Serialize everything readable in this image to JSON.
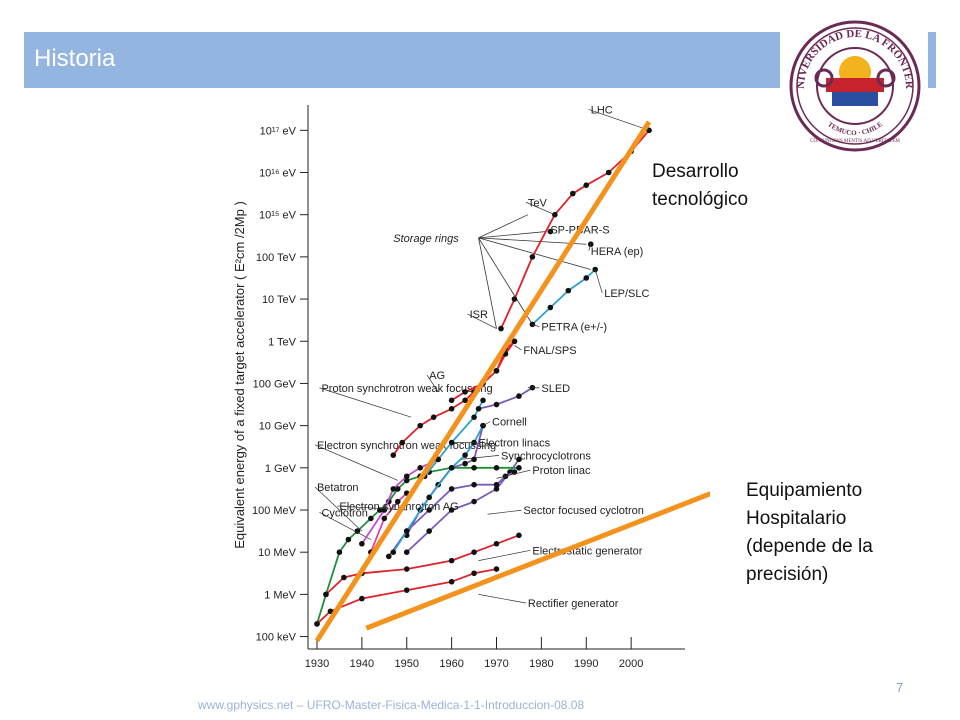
{
  "slide": {
    "title": "Historia",
    "page_number": "7",
    "footer": "www.gphysics.net – UFRO-Master-Fisica-Medica-1-1-Introduccion-08.08",
    "annotations": {
      "upper_line1": "Desarrollo",
      "upper_line2": "tecnológico",
      "lower_line1": "Equipamiento",
      "lower_line2": "Hospitalario",
      "lower_line3": "(depende de la",
      "lower_line4": "precisión)"
    },
    "logo": {
      "icon": "university-seal-icon",
      "text_top": "UNIVERSIDAD DE LA FRONTERA",
      "text_bottom": "TEMUCO · CHILE",
      "motto": "CONIUNGENS MENTIS AD VERITATEM"
    }
  },
  "chart_data": {
    "type": "line",
    "ylabel": "Equivalent energy of a fixed target accelerator ( E²cm /2Mp )",
    "x_ticks": [
      1930,
      1940,
      1950,
      1960,
      1970,
      1980,
      1990,
      2000
    ],
    "y_ticks": [
      {
        "log": 5,
        "label": "100 keV"
      },
      {
        "log": 6,
        "label": "1 MeV"
      },
      {
        "log": 7,
        "label": "10 MeV"
      },
      {
        "log": 8,
        "label": "100 MeV"
      },
      {
        "log": 9,
        "label": "1 GeV"
      },
      {
        "log": 10,
        "label": "10 GeV"
      },
      {
        "log": 11,
        "label": "100 GeV"
      },
      {
        "log": 12,
        "label": "1 TeV"
      },
      {
        "log": 13,
        "label": "10 TeV"
      },
      {
        "log": 14,
        "label": "100 TeV"
      },
      {
        "log": 15,
        "label": "10¹⁵ eV"
      },
      {
        "log": 16,
        "label": "10¹⁶ eV"
      },
      {
        "log": 17,
        "label": "10¹⁷ eV"
      }
    ],
    "xlim": [
      1928,
      2012
    ],
    "ylim_log": [
      4.8,
      17.6
    ],
    "series": [
      {
        "name": "Rectifier generator",
        "color": "#e0202a",
        "label_at": [
          1977,
          5.7
        ],
        "label_anchor": [
          1966,
          6.0
        ],
        "points": [
          [
            1930,
            5.3
          ],
          [
            1933,
            5.6
          ],
          [
            1940,
            5.9
          ],
          [
            1950,
            6.1
          ],
          [
            1960,
            6.3
          ],
          [
            1965,
            6.5
          ],
          [
            1970,
            6.6
          ]
        ]
      },
      {
        "name": "Electrostatic generator",
        "color": "#e0202a",
        "label_at": [
          1978,
          6.95
        ],
        "label_anchor": [
          1966,
          6.8
        ],
        "points": [
          [
            1932,
            6.0
          ],
          [
            1936,
            6.4
          ],
          [
            1940,
            6.5
          ],
          [
            1950,
            6.6
          ],
          [
            1960,
            6.8
          ],
          [
            1965,
            7.0
          ],
          [
            1970,
            7.2
          ],
          [
            1975,
            7.4
          ]
        ]
      },
      {
        "name": "Sector focused cyclotron",
        "color": "#7a5ab8",
        "label_at": [
          1976,
          7.9
        ],
        "label_anchor": [
          1968,
          7.9
        ],
        "points": [
          [
            1950,
            7.0
          ],
          [
            1955,
            7.5
          ],
          [
            1960,
            8.0
          ],
          [
            1965,
            8.2
          ],
          [
            1970,
            8.5
          ],
          [
            1973,
            8.9
          ],
          [
            1975,
            9.2
          ]
        ]
      },
      {
        "name": "Proton linac",
        "color": "#7a5ab8",
        "label_at": [
          1978,
          8.85
        ],
        "label_anchor": [
          1970,
          8.75
        ],
        "points": [
          [
            1946,
            6.9
          ],
          [
            1950,
            7.5
          ],
          [
            1955,
            8.0
          ],
          [
            1960,
            8.5
          ],
          [
            1965,
            8.6
          ],
          [
            1970,
            8.6
          ],
          [
            1972,
            8.8
          ],
          [
            1974,
            8.9
          ]
        ]
      },
      {
        "name": "Cyclotron",
        "color": "#1f8f3a",
        "label_at": [
          1931,
          7.85
        ],
        "label_anchor": [
          1942,
          7.3
        ],
        "points": [
          [
            1930,
            5.3
          ],
          [
            1932,
            6.0
          ],
          [
            1935,
            7.0
          ],
          [
            1937,
            7.3
          ],
          [
            1939,
            7.5
          ],
          [
            1942,
            7.8
          ],
          [
            1944,
            8.0
          ],
          [
            1946,
            8.2
          ]
        ]
      },
      {
        "name": "Synchrocyclotrons",
        "color": "#1f8f3a",
        "label_at": [
          1971,
          9.2
        ],
        "label_anchor": [
          1962,
          9.2
        ],
        "points": [
          [
            1946,
            8.2
          ],
          [
            1948,
            8.5
          ],
          [
            1950,
            8.7
          ],
          [
            1953,
            8.8
          ],
          [
            1955,
            8.9
          ],
          [
            1960,
            9.0
          ],
          [
            1965,
            9.0
          ],
          [
            1970,
            9.0
          ],
          [
            1975,
            9.0
          ]
        ]
      },
      {
        "name": "Betatron",
        "color": "#e040b0",
        "label_at": [
          1930,
          8.45
        ],
        "label_anchor": [
          1940,
          7.5
        ],
        "points": [
          [
            1940,
            6.5
          ],
          [
            1942,
            7.0
          ],
          [
            1945,
            7.8
          ],
          [
            1948,
            8.2
          ],
          [
            1950,
            8.4
          ]
        ]
      },
      {
        "name": "Electron synchrotron weak focussing",
        "color": "#c04cd0",
        "label_at": [
          1930,
          9.45
        ],
        "label_anchor": [
          1948,
          8.7
        ],
        "points": [
          [
            1940,
            7.2
          ],
          [
            1945,
            8.0
          ],
          [
            1947,
            8.5
          ],
          [
            1950,
            8.8
          ],
          [
            1953,
            9.0
          ],
          [
            1957,
            9.2
          ]
        ]
      },
      {
        "name": "Electron synchrotron AG",
        "color": "#7a5ab8",
        "label_at": [
          1935,
          8.0
        ],
        "label_anchor": [
          1950,
          8.0
        ],
        "points": [
          [
            1950,
            7.4
          ],
          [
            1953,
            8.0
          ],
          [
            1957,
            8.6
          ],
          [
            1960,
            9.0
          ],
          [
            1963,
            9.1
          ],
          [
            1965,
            9.2
          ],
          [
            1967,
            10.0
          ]
        ]
      },
      {
        "name": "Electron linacs",
        "color": "#2aa0d0",
        "label_at": [
          1966,
          9.5
        ],
        "label_anchor": [
          1960,
          9.6
        ],
        "points": [
          [
            1947,
            7.0
          ],
          [
            1950,
            7.5
          ],
          [
            1955,
            8.3
          ],
          [
            1960,
            9.0
          ],
          [
            1963,
            9.3
          ],
          [
            1965,
            9.6
          ],
          [
            1967,
            10.0
          ]
        ]
      },
      {
        "name": "Cornell",
        "color": "#2aa0d0",
        "label_at": [
          1969,
          10.0
        ],
        "label_anchor": [
          1967,
          10.0
        ],
        "points": [
          [
            1954,
            8.8
          ],
          [
            1957,
            9.2
          ],
          [
            1960,
            9.6
          ],
          [
            1965,
            10.2
          ],
          [
            1967,
            10.6
          ]
        ]
      },
      {
        "name": "SLED",
        "color": "#7a5ab8",
        "label_at": [
          1980,
          10.8
        ],
        "label_anchor": [
          1977,
          10.9
        ],
        "points": [
          [
            1966,
            10.4
          ],
          [
            1970,
            10.5
          ],
          [
            1975,
            10.7
          ],
          [
            1978,
            10.9
          ]
        ]
      },
      {
        "name": "Proton synchrotron weak focussing",
        "color": "#e0202a",
        "label_at": [
          1931,
          10.8
        ],
        "label_anchor": [
          1951,
          10.2
        ],
        "points": [
          [
            1947,
            9.3
          ],
          [
            1949,
            9.6
          ],
          [
            1953,
            10.0
          ],
          [
            1956,
            10.2
          ],
          [
            1960,
            10.4
          ],
          [
            1963,
            10.6
          ],
          [
            1965,
            10.8
          ]
        ]
      },
      {
        "name": "AG",
        "color": "#e0202a",
        "label_at": [
          1955,
          11.1
        ],
        "label_anchor": [
          1957,
          10.8
        ],
        "points": [
          [
            1960,
            10.6
          ],
          [
            1963,
            10.8
          ],
          [
            1967,
            11.0
          ],
          [
            1970,
            11.3
          ],
          [
            1972,
            11.8
          ],
          [
            1974,
            12.0
          ]
        ]
      },
      {
        "name": "FNAL/SPS",
        "color": "#e0202a",
        "label_at": [
          1976,
          11.7
        ],
        "label_anchor": [
          1974,
          11.9
        ],
        "points": [
          [
            1970,
            11.3
          ],
          [
            1972,
            11.7
          ],
          [
            1974,
            12.0
          ]
        ]
      },
      {
        "name": "ISR",
        "color": "#e0202a",
        "label_at": [
          1964,
          12.55
        ],
        "label_anchor": [
          1970,
          12.3
        ],
        "points": [
          [
            1971,
            12.3
          ],
          [
            1974,
            13.0
          ],
          [
            1978,
            14.0
          ],
          [
            1983,
            15.0
          ],
          [
            1987,
            15.5
          ],
          [
            1990,
            15.7
          ],
          [
            1995,
            16.0
          ],
          [
            2000,
            16.5
          ],
          [
            2004,
            17.0
          ]
        ]
      },
      {
        "name": "PETRA (e+/-)",
        "color": "#2aa0d0",
        "label_at": [
          1980,
          12.25
        ],
        "label_anchor": [
          1978,
          12.4
        ],
        "points": [
          [
            1978,
            12.4
          ],
          [
            1982,
            12.8
          ],
          [
            1986,
            13.2
          ],
          [
            1990,
            13.5
          ],
          [
            1992,
            13.7
          ]
        ]
      },
      {
        "name": "LEP/SLC",
        "color": "#2aa0d0",
        "label_at": [
          1994,
          13.05
        ],
        "label_anchor": [
          1992,
          13.7
        ],
        "points": []
      },
      {
        "name": "HERA (ep)",
        "color": "#111111",
        "label_at": [
          1991,
          14.05
        ],
        "label_anchor": [
          1991,
          14.3
        ],
        "points": [
          [
            1991,
            14.3
          ]
        ]
      },
      {
        "name": "SP-PBAR-S",
        "color": "#e0202a",
        "label_at": [
          1982,
          14.55
        ],
        "label_anchor": [
          1982,
          14.6
        ],
        "points": [
          [
            1982,
            14.6
          ]
        ]
      },
      {
        "name": "TeV",
        "color": "#e0202a",
        "label_at": [
          1977,
          15.2
        ],
        "label_anchor": [
          1983,
          15.0
        ],
        "points": []
      },
      {
        "name": "LHC",
        "color": "#e0202a",
        "label_at": [
          1991,
          17.4
        ],
        "label_anchor": [
          2004,
          17.0
        ],
        "points": []
      }
    ],
    "storage_rings_label": {
      "text": "Storage rings",
      "at": [
        1947,
        14.35
      ],
      "fan_origin": [
        1966,
        14.45
      ],
      "fan_targets": [
        [
          1977,
          15.0
        ],
        [
          1981,
          14.6
        ],
        [
          1990,
          14.3
        ],
        [
          1991,
          13.7
        ],
        [
          1978,
          12.4
        ],
        [
          1970,
          12.3
        ]
      ]
    },
    "trend_lines": [
      {
        "name": "Desarrollo tecnológico",
        "color": "#f4921e",
        "from": [
          1930,
          4.9
        ],
        "to": [
          2004,
          17.2
        ]
      },
      {
        "name": "Equipamiento Hospitalario",
        "color": "#f4921e",
        "from": [
          1941,
          5.2
        ],
        "to": [
          2030,
          8.9
        ]
      }
    ]
  }
}
